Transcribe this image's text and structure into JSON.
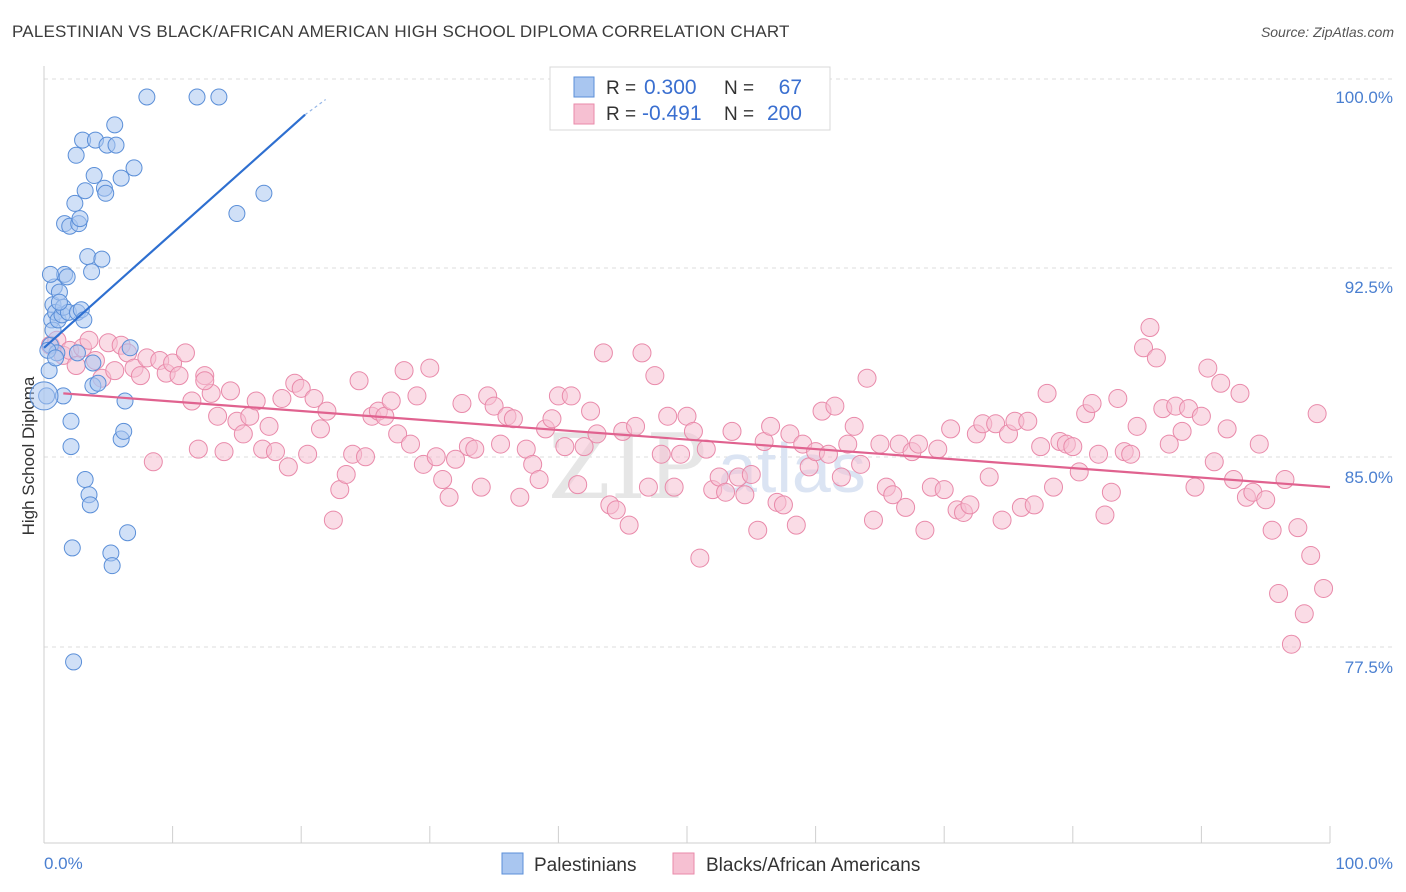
{
  "title": "PALESTINIAN VS BLACK/AFRICAN AMERICAN HIGH SCHOOL DIPLOMA CORRELATION CHART",
  "source": "Source: ZipAtlas.com",
  "watermark": {
    "zip": "ZIP",
    "atlas": "atlas"
  },
  "legend": {
    "rows": [
      {
        "r_label": "R =",
        "r_value": "0.300",
        "n_label": "N =",
        "n_value": "67"
      },
      {
        "r_label": "R =",
        "r_value": "-0.491",
        "n_label": "N =",
        "n_value": "200"
      }
    ]
  },
  "bottom_legend": [
    "Palestinians",
    "Blacks/African Americans"
  ],
  "colors": {
    "blue_fill": "#a9c6f0",
    "blue_stroke": "#5b8fd8",
    "blue_line": "#2e6fd0",
    "pink_fill": "#f6c0d2",
    "pink_stroke": "#e98aaa",
    "pink_line": "#e0628f",
    "grid": "#dcdcdc",
    "tick_text": "#4a7fd0"
  },
  "chart_data": {
    "type": "scatter",
    "title": "PALESTINIAN VS BLACK/AFRICAN AMERICAN HIGH SCHOOL DIPLOMA CORRELATION CHART",
    "xlabel": "",
    "ylabel": "High School Diploma",
    "xlim": [
      0,
      100
    ],
    "ylim": [
      71.3,
      101.6
    ],
    "x_tick_labels": [
      "0.0%",
      "100.0%"
    ],
    "y_ticks": [
      77.5,
      85.0,
      92.5,
      100.0
    ],
    "y_tick_labels": [
      "77.5%",
      "85.0%",
      "92.5%",
      "100.0%"
    ],
    "grid": true,
    "legend_position": "top-center",
    "series": [
      {
        "name": "Palestinians",
        "r": 0.3,
        "n": 67,
        "trend": {
          "x": [
            0,
            20.3
          ],
          "y": [
            90.1,
            99.3
          ],
          "dashed_to": [
            21.9,
            99.9
          ]
        },
        "points": [
          [
            0.2,
            88.2
          ],
          [
            0.4,
            89.2
          ],
          [
            0.5,
            90.2
          ],
          [
            0.6,
            91.2
          ],
          [
            0.7,
            91.8
          ],
          [
            0.7,
            90.8
          ],
          [
            0.8,
            92.5
          ],
          [
            0.9,
            91.5
          ],
          [
            1.0,
            89.9
          ],
          [
            1.1,
            91.2
          ],
          [
            1.2,
            92.3
          ],
          [
            1.4,
            91.4
          ],
          [
            1.5,
            91.7
          ],
          [
            1.5,
            88.2
          ],
          [
            1.6,
            93.0
          ],
          [
            1.6,
            95.0
          ],
          [
            1.8,
            92.9
          ],
          [
            1.9,
            91.5
          ],
          [
            2.0,
            94.9
          ],
          [
            2.1,
            87.2
          ],
          [
            2.1,
            86.2
          ],
          [
            2.2,
            82.2
          ],
          [
            2.3,
            77.7
          ],
          [
            2.4,
            95.8
          ],
          [
            2.5,
            97.7
          ],
          [
            2.6,
            91.5
          ],
          [
            2.6,
            89.9
          ],
          [
            2.7,
            95.0
          ],
          [
            2.8,
            95.2
          ],
          [
            2.9,
            91.6
          ],
          [
            3.0,
            98.3
          ],
          [
            3.1,
            91.2
          ],
          [
            3.2,
            96.3
          ],
          [
            3.2,
            84.9
          ],
          [
            3.4,
            93.7
          ],
          [
            3.5,
            84.3
          ],
          [
            3.6,
            83.9
          ],
          [
            3.7,
            93.1
          ],
          [
            3.8,
            88.6
          ],
          [
            3.8,
            89.5
          ],
          [
            3.9,
            96.9
          ],
          [
            4.0,
            98.3
          ],
          [
            4.2,
            88.7
          ],
          [
            4.5,
            93.6
          ],
          [
            4.7,
            96.4
          ],
          [
            4.8,
            96.2
          ],
          [
            4.9,
            98.1
          ],
          [
            5.2,
            82.0
          ],
          [
            5.3,
            81.5
          ],
          [
            5.5,
            98.9
          ],
          [
            5.6,
            98.1
          ],
          [
            6.0,
            96.8
          ],
          [
            6.0,
            86.5
          ],
          [
            6.2,
            86.8
          ],
          [
            6.3,
            88.0
          ],
          [
            6.5,
            82.8
          ],
          [
            6.7,
            90.1
          ],
          [
            7.0,
            97.2
          ],
          [
            8.0,
            100.0
          ],
          [
            11.9,
            100.0
          ],
          [
            13.6,
            100.0
          ],
          [
            15.0,
            95.4
          ],
          [
            17.1,
            96.2
          ],
          [
            0.3,
            90.0
          ],
          [
            0.9,
            89.7
          ],
          [
            1.2,
            91.9
          ],
          [
            0.5,
            93.0
          ]
        ]
      },
      {
        "name": "Blacks/African Americans",
        "r": -0.491,
        "n": 200,
        "trend": {
          "x": [
            1.5,
            100
          ],
          "y": [
            88.3,
            84.6
          ]
        },
        "points": [
          [
            0.5,
            90.2
          ],
          [
            1.0,
            90.4
          ],
          [
            1.5,
            89.8
          ],
          [
            2.0,
            90.0
          ],
          [
            2.5,
            89.4
          ],
          [
            3.0,
            90.1
          ],
          [
            3.5,
            90.4
          ],
          [
            4.0,
            89.6
          ],
          [
            4.5,
            88.9
          ],
          [
            5.0,
            90.3
          ],
          [
            5.5,
            89.2
          ],
          [
            6.0,
            90.2
          ],
          [
            6.5,
            89.9
          ],
          [
            7.0,
            89.3
          ],
          [
            7.5,
            89.0
          ],
          [
            8.0,
            89.7
          ],
          [
            8.5,
            85.6
          ],
          [
            9.0,
            89.6
          ],
          [
            9.5,
            89.1
          ],
          [
            10.0,
            89.5
          ],
          [
            10.5,
            89.0
          ],
          [
            11.0,
            89.9
          ],
          [
            11.5,
            88.0
          ],
          [
            12.0,
            86.1
          ],
          [
            12.5,
            89.0
          ],
          [
            13.0,
            88.3
          ],
          [
            13.5,
            87.4
          ],
          [
            14.0,
            86.0
          ],
          [
            14.5,
            88.4
          ],
          [
            15.0,
            87.2
          ],
          [
            15.5,
            86.7
          ],
          [
            16.0,
            87.4
          ],
          [
            16.5,
            88.0
          ],
          [
            17.0,
            86.1
          ],
          [
            17.5,
            87.0
          ],
          [
            18.0,
            86.0
          ],
          [
            18.5,
            88.1
          ],
          [
            19.0,
            85.4
          ],
          [
            19.5,
            88.7
          ],
          [
            20.0,
            88.5
          ],
          [
            20.5,
            85.9
          ],
          [
            21.0,
            88.1
          ],
          [
            21.5,
            86.9
          ],
          [
            22.0,
            87.6
          ],
          [
            22.5,
            83.3
          ],
          [
            23.0,
            84.5
          ],
          [
            23.5,
            85.1
          ],
          [
            24.0,
            85.9
          ],
          [
            24.5,
            88.8
          ],
          [
            25.0,
            85.8
          ],
          [
            25.5,
            87.4
          ],
          [
            26.0,
            87.6
          ],
          [
            26.5,
            87.4
          ],
          [
            27.0,
            88.0
          ],
          [
            27.5,
            86.7
          ],
          [
            28.0,
            89.2
          ],
          [
            28.5,
            86.3
          ],
          [
            29.0,
            88.2
          ],
          [
            29.5,
            85.5
          ],
          [
            30.0,
            89.3
          ],
          [
            30.5,
            85.8
          ],
          [
            31.0,
            84.9
          ],
          [
            31.5,
            84.2
          ],
          [
            32.0,
            85.7
          ],
          [
            32.5,
            87.9
          ],
          [
            33.0,
            86.2
          ],
          [
            33.5,
            86.1
          ],
          [
            34.0,
            84.6
          ],
          [
            34.5,
            88.2
          ],
          [
            35.0,
            87.8
          ],
          [
            35.5,
            86.3
          ],
          [
            36.0,
            87.4
          ],
          [
            36.5,
            87.3
          ],
          [
            37.0,
            84.2
          ],
          [
            37.5,
            86.1
          ],
          [
            38.0,
            85.5
          ],
          [
            38.5,
            84.9
          ],
          [
            39.0,
            86.9
          ],
          [
            39.5,
            87.3
          ],
          [
            40.0,
            88.2
          ],
          [
            40.5,
            86.2
          ],
          [
            41.0,
            88.2
          ],
          [
            41.5,
            84.7
          ],
          [
            42.0,
            86.2
          ],
          [
            42.5,
            87.6
          ],
          [
            43.0,
            86.7
          ],
          [
            43.5,
            89.9
          ],
          [
            44.0,
            83.9
          ],
          [
            44.5,
            83.7
          ],
          [
            45.0,
            86.8
          ],
          [
            45.5,
            83.1
          ],
          [
            46.0,
            87.0
          ],
          [
            46.5,
            89.9
          ],
          [
            47.0,
            84.6
          ],
          [
            47.5,
            89.0
          ],
          [
            48.0,
            85.9
          ],
          [
            48.5,
            87.4
          ],
          [
            49.0,
            84.6
          ],
          [
            49.5,
            85.9
          ],
          [
            50.0,
            87.4
          ],
          [
            50.5,
            86.8
          ],
          [
            51.0,
            81.8
          ],
          [
            51.5,
            86.1
          ],
          [
            52.0,
            84.5
          ],
          [
            52.5,
            85.0
          ],
          [
            53.0,
            84.4
          ],
          [
            53.5,
            86.8
          ],
          [
            54.0,
            85.0
          ],
          [
            54.5,
            84.3
          ],
          [
            55.0,
            85.1
          ],
          [
            55.5,
            82.9
          ],
          [
            56.0,
            86.4
          ],
          [
            56.5,
            87.0
          ],
          [
            57.0,
            84.0
          ],
          [
            57.5,
            83.9
          ],
          [
            58.0,
            86.7
          ],
          [
            58.5,
            83.1
          ],
          [
            59.0,
            86.3
          ],
          [
            59.5,
            85.4
          ],
          [
            60.0,
            86.0
          ],
          [
            60.5,
            87.6
          ],
          [
            61.0,
            85.9
          ],
          [
            61.5,
            87.8
          ],
          [
            62.0,
            85.0
          ],
          [
            62.5,
            86.3
          ],
          [
            63.0,
            87.0
          ],
          [
            63.5,
            85.5
          ],
          [
            64.0,
            88.9
          ],
          [
            64.5,
            83.3
          ],
          [
            65.0,
            86.3
          ],
          [
            65.5,
            84.6
          ],
          [
            66.0,
            84.3
          ],
          [
            66.5,
            86.3
          ],
          [
            67.0,
            83.8
          ],
          [
            67.5,
            86.0
          ],
          [
            68.0,
            86.3
          ],
          [
            68.5,
            82.9
          ],
          [
            69.0,
            84.6
          ],
          [
            69.5,
            86.1
          ],
          [
            70.0,
            84.5
          ],
          [
            70.5,
            86.9
          ],
          [
            71.0,
            83.7
          ],
          [
            71.5,
            83.6
          ],
          [
            72.0,
            83.9
          ],
          [
            72.5,
            86.7
          ],
          [
            73.0,
            87.1
          ],
          [
            73.5,
            85.0
          ],
          [
            74.0,
            87.1
          ],
          [
            74.5,
            83.3
          ],
          [
            75.0,
            86.7
          ],
          [
            75.5,
            87.2
          ],
          [
            76.0,
            83.8
          ],
          [
            76.5,
            87.2
          ],
          [
            77.0,
            83.9
          ],
          [
            77.5,
            86.2
          ],
          [
            78.0,
            88.3
          ],
          [
            78.5,
            84.6
          ],
          [
            79.0,
            86.4
          ],
          [
            79.5,
            86.3
          ],
          [
            80.0,
            86.2
          ],
          [
            80.5,
            85.2
          ],
          [
            81.0,
            87.5
          ],
          [
            81.5,
            87.9
          ],
          [
            82.0,
            85.9
          ],
          [
            82.5,
            83.5
          ],
          [
            83.0,
            84.4
          ],
          [
            83.5,
            88.1
          ],
          [
            84.0,
            86.0
          ],
          [
            84.5,
            85.9
          ],
          [
            85.0,
            87.0
          ],
          [
            85.5,
            90.1
          ],
          [
            86.0,
            90.9
          ],
          [
            86.5,
            89.7
          ],
          [
            87.0,
            87.7
          ],
          [
            87.5,
            86.3
          ],
          [
            88.0,
            87.8
          ],
          [
            88.5,
            86.8
          ],
          [
            89.0,
            87.7
          ],
          [
            89.5,
            84.6
          ],
          [
            90.0,
            87.4
          ],
          [
            90.5,
            89.3
          ],
          [
            91.0,
            85.6
          ],
          [
            91.5,
            88.7
          ],
          [
            92.0,
            86.9
          ],
          [
            92.5,
            84.9
          ],
          [
            93.0,
            88.3
          ],
          [
            93.5,
            84.2
          ],
          [
            94.0,
            84.4
          ],
          [
            94.5,
            86.3
          ],
          [
            95.0,
            84.1
          ],
          [
            95.5,
            82.9
          ],
          [
            96.0,
            80.4
          ],
          [
            96.5,
            84.9
          ],
          [
            97.0,
            78.4
          ],
          [
            97.5,
            83.0
          ],
          [
            98.0,
            79.6
          ],
          [
            98.5,
            81.9
          ],
          [
            99.0,
            87.5
          ],
          [
            99.5,
            80.6
          ],
          [
            12.5,
            88.8
          ]
        ]
      }
    ]
  }
}
